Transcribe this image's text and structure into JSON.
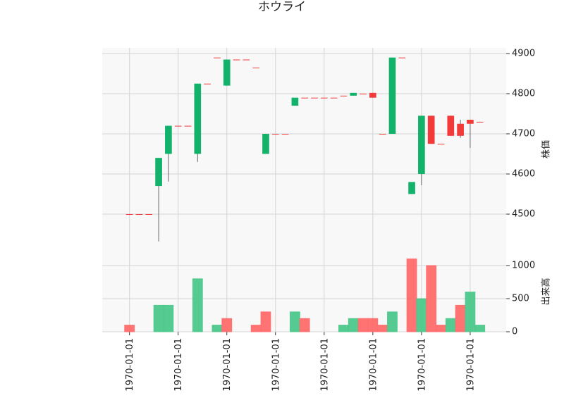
{
  "chart_data": [
    {
      "type": "candlestick",
      "title": "ホウライ",
      "ylabel": "株価",
      "open": [
        4500,
        4500,
        4500,
        4570,
        4650,
        4720,
        4720,
        4650,
        4825,
        4890,
        4820,
        4885,
        4885,
        4865,
        4650,
        4700,
        4700,
        4770,
        4790,
        4790,
        4790,
        4790,
        4795,
        4795,
        4800,
        4802,
        4700,
        4700,
        4890,
        4550,
        4600,
        4745,
        4675,
        4745,
        4725,
        4735,
        4730
      ],
      "high": [
        4500,
        4500,
        4500,
        4640,
        4720,
        4720,
        4720,
        4825,
        4825,
        4890,
        4885,
        4885,
        4885,
        4865,
        4700,
        4700,
        4700,
        4790,
        4790,
        4790,
        4790,
        4790,
        4795,
        4802,
        4800,
        4802,
        4700,
        4890,
        4890,
        4580,
        4745,
        4745,
        4675,
        4745,
        4735,
        4735,
        4730
      ],
      "low": [
        4500,
        4500,
        4500,
        4432,
        4581,
        4720,
        4720,
        4630,
        4825,
        4890,
        4820,
        4885,
        4885,
        4865,
        4650,
        4700,
        4700,
        4770,
        4790,
        4790,
        4790,
        4790,
        4795,
        4795,
        4800,
        4790,
        4700,
        4700,
        4890,
        4550,
        4572,
        4675,
        4675,
        4695,
        4690,
        4665,
        4730
      ],
      "close": [
        4500,
        4500,
        4500,
        4640,
        4720,
        4720,
        4720,
        4825,
        4825,
        4890,
        4885,
        4885,
        4885,
        4865,
        4700,
        4700,
        4700,
        4790,
        4790,
        4790,
        4790,
        4790,
        4795,
        4802,
        4800,
        4790,
        4700,
        4890,
        4890,
        4580,
        4745,
        4675,
        4675,
        4695,
        4695,
        4725,
        4730
      ],
      "up_color": "#13b26b",
      "down_color": "#f23a3a",
      "wick_color": "#666666",
      "xlim": [
        -2.8,
        38.7
      ],
      "ylim": [
        4407,
        4914
      ],
      "yticks": [
        4500,
        4600,
        4700,
        4800,
        4900
      ],
      "grid": true
    },
    {
      "type": "volume",
      "ylabel": "出来高",
      "values": [
        100,
        0,
        0,
        400,
        400,
        0,
        0,
        800,
        0,
        100,
        200,
        0,
        0,
        100,
        300,
        0,
        0,
        300,
        200,
        0,
        0,
        0,
        100,
        200,
        200,
        200,
        100,
        300,
        0,
        1100,
        500,
        1000,
        100,
        200,
        400,
        600,
        100
      ],
      "up_color": "#4cc88b",
      "down_color": "#ff6b6b",
      "xlim": [
        -2.8,
        38.7
      ],
      "ylim": [
        0,
        1213
      ],
      "yticks": [
        0,
        500,
        1000
      ],
      "grid": true,
      "xticks": [
        {
          "value": 0,
          "label": "1970-01-01"
        },
        {
          "value": 5,
          "label": "1970-01-01"
        },
        {
          "value": 10,
          "label": "1970-01-01"
        },
        {
          "value": 15,
          "label": "1970-01-01"
        },
        {
          "value": 20,
          "label": "1970-01-01"
        },
        {
          "value": 25,
          "label": "1970-01-01"
        },
        {
          "value": 30,
          "label": "1970-01-01"
        },
        {
          "value": 35,
          "label": "1970-01-01"
        }
      ]
    }
  ]
}
